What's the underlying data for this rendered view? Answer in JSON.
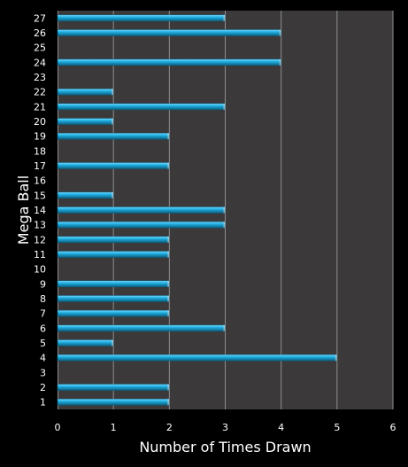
{
  "chart_data": {
    "type": "bar",
    "orientation": "horizontal",
    "title": "",
    "xlabel": "Number of Times Drawn",
    "ylabel": "Mega Ball",
    "xlim": [
      0,
      6
    ],
    "x_ticks": [
      0,
      1,
      2,
      3,
      4,
      5,
      6
    ],
    "grid": true,
    "legend": "none",
    "categories": [
      "1",
      "2",
      "3",
      "4",
      "5",
      "6",
      "7",
      "8",
      "9",
      "10",
      "11",
      "12",
      "13",
      "14",
      "15",
      "16",
      "17",
      "18",
      "19",
      "20",
      "21",
      "22",
      "23",
      "24",
      "25",
      "26",
      "27"
    ],
    "values": [
      2,
      2,
      0,
      5,
      1,
      3,
      2,
      2,
      2,
      0,
      2,
      2,
      3,
      3,
      1,
      0,
      2,
      0,
      2,
      1,
      3,
      1,
      0,
      4,
      0,
      4,
      3
    ],
    "colors": {
      "background": "#000000",
      "plot_area": "#3b3939",
      "gridline": "#8f8f8f",
      "bar": "#22b3e6",
      "bar_highlight": "#7fdcff",
      "bar_shadow": "#0a5f80",
      "text": "#ffffff"
    }
  }
}
